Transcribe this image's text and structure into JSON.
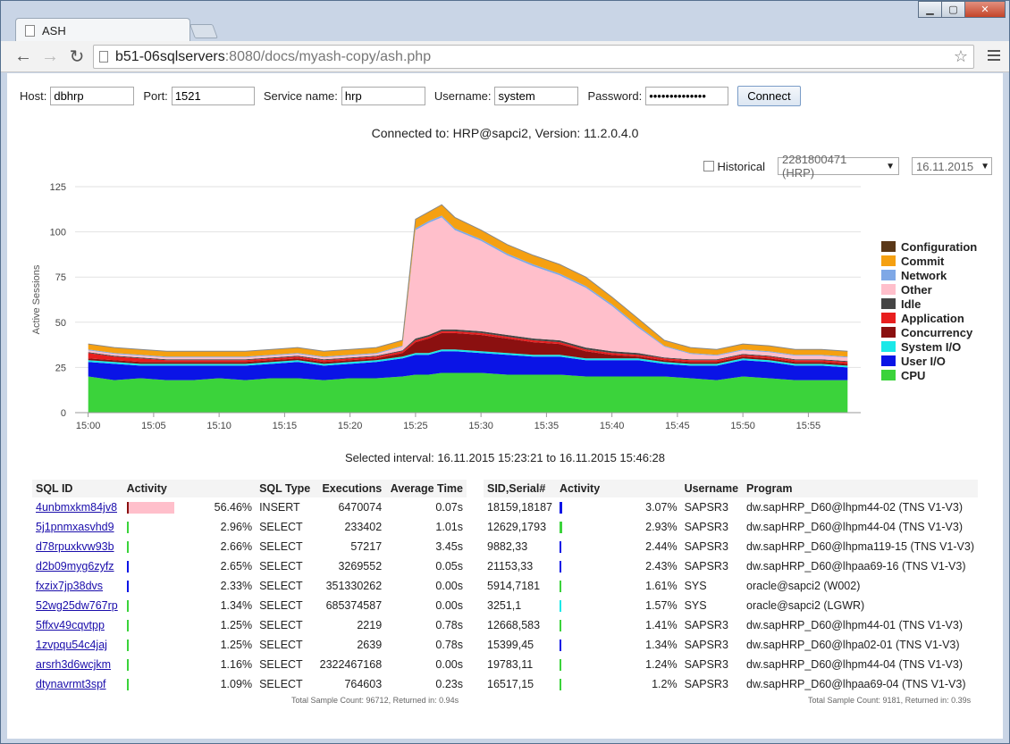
{
  "tab": {
    "title": "ASH"
  },
  "window_controls": {
    "minimize": "▁",
    "maximize": "▢",
    "close": "✕"
  },
  "toolbar": {
    "url_host": "b51-06sqlservers",
    "url_rest": ":8080/docs/myash-copy/ash.php",
    "back_icon": "back-arrow-icon",
    "forward_icon": "forward-arrow-icon",
    "reload_icon": "reload-icon"
  },
  "form": {
    "host_label": "Host:",
    "host_value": "dbhrp",
    "port_label": "Port:",
    "port_value": "1521",
    "service_label": "Service name:",
    "service_value": "hrp",
    "username_label": "Username:",
    "username_value": "system",
    "password_label": "Password:",
    "password_value": "••••••••••••••",
    "connect_label": "Connect"
  },
  "connected_text": "Connected to: HRP@sapci2, Version: 11.2.0.4.0",
  "filters": {
    "historical_label": "Historical",
    "dbid_value": "2281800471 (HRP)",
    "date_value": "16.11.2015"
  },
  "chart_data": {
    "type": "area",
    "stacked": true,
    "ylabel": "Active Sessions",
    "ylim": [
      0,
      125
    ],
    "yticks": [
      "0",
      "25",
      "50",
      "75",
      "100",
      "125"
    ],
    "xticks": [
      "15:00",
      "15:05",
      "15:10",
      "15:15",
      "15:20",
      "15:25",
      "15:30",
      "15:35",
      "15:40",
      "15:45",
      "15:50",
      "15:55"
    ],
    "x": [
      "15:00",
      "15:02",
      "15:04",
      "15:06",
      "15:08",
      "15:10",
      "15:12",
      "15:14",
      "15:16",
      "15:18",
      "15:20",
      "15:22",
      "15:24",
      "15:25",
      "15:26",
      "15:27",
      "15:28",
      "15:30",
      "15:32",
      "15:34",
      "15:36",
      "15:38",
      "15:40",
      "15:42",
      "15:44",
      "15:46",
      "15:48",
      "15:50",
      "15:52",
      "15:54",
      "15:56",
      "15:58"
    ],
    "grid": true,
    "legend_placement": "right",
    "series": [
      {
        "name": "CPU",
        "color": "#3bd33b",
        "values": [
          20,
          18,
          19,
          18,
          18,
          19,
          18,
          19,
          19,
          18,
          19,
          19,
          20,
          21,
          21,
          22,
          22,
          22,
          21,
          21,
          21,
          20,
          20,
          20,
          20,
          19,
          18,
          20,
          19,
          18,
          18,
          18
        ]
      },
      {
        "name": "User I/O",
        "color": "#0a14e6",
        "values": [
          8,
          9,
          7,
          8,
          8,
          7,
          8,
          8,
          9,
          8,
          8,
          9,
          10,
          11,
          11,
          12,
          12,
          11,
          11,
          10,
          10,
          9,
          9,
          9,
          7,
          7,
          8,
          9,
          9,
          8,
          8,
          7
        ]
      },
      {
        "name": "System I/O",
        "color": "#1ae8e8",
        "values": [
          1,
          1,
          1,
          1,
          1,
          1,
          1,
          1,
          1,
          1,
          1,
          1,
          1,
          1,
          1,
          1,
          1,
          1,
          1,
          1,
          1,
          1,
          1,
          1,
          1,
          1,
          1,
          1,
          1,
          1,
          1,
          1
        ]
      },
      {
        "name": "Concurrency",
        "color": "#8b1010",
        "values": [
          1,
          1,
          1,
          1,
          1,
          1,
          1,
          1,
          1,
          1,
          1,
          1,
          2,
          6,
          8,
          9,
          9,
          9,
          8,
          7,
          6,
          4,
          2,
          1,
          1,
          1,
          1,
          1,
          1,
          1,
          1,
          1
        ]
      },
      {
        "name": "Application",
        "color": "#e81e1e",
        "values": [
          3,
          2,
          2,
          1,
          1,
          1,
          1,
          1,
          1,
          1,
          1,
          1,
          1,
          1,
          1,
          1,
          1,
          1,
          1,
          1,
          1,
          1,
          1,
          1,
          1,
          1,
          1,
          1,
          1,
          1,
          1,
          1
        ]
      },
      {
        "name": "Idle",
        "color": "#454545",
        "values": [
          0.5,
          0.5,
          0.5,
          0.5,
          0.5,
          0.5,
          0.5,
          0.5,
          0.5,
          0.5,
          0.5,
          0.5,
          0.5,
          1,
          1,
          1,
          1,
          1,
          1,
          1,
          1,
          1,
          1,
          1,
          0.5,
          0.5,
          0.5,
          0.5,
          0.5,
          0.5,
          0.5,
          0.5
        ]
      },
      {
        "name": "Other",
        "color": "#ffbfcb",
        "values": [
          1,
          1,
          1,
          1,
          1,
          1,
          1,
          1,
          1,
          1,
          1,
          1,
          2,
          60,
          62,
          62,
          55,
          50,
          44,
          40,
          36,
          33,
          25,
          14,
          6,
          3,
          2,
          2,
          2,
          2,
          2,
          2
        ]
      },
      {
        "name": "Network",
        "color": "#7fa8e6",
        "values": [
          0.5,
          0.5,
          0.5,
          0.5,
          0.5,
          0.5,
          0.5,
          0.5,
          0.5,
          0.5,
          0.5,
          0.5,
          0.5,
          1,
          1,
          1,
          1,
          1,
          1,
          1,
          1,
          1,
          1,
          1,
          0.5,
          0.5,
          0.5,
          0.5,
          0.5,
          0.5,
          0.5,
          0.5
        ]
      },
      {
        "name": "Commit",
        "color": "#f5a011",
        "values": [
          3,
          3,
          3,
          3,
          3,
          3,
          3,
          3,
          3,
          3,
          3,
          3,
          3,
          5,
          5,
          6,
          6,
          5,
          5,
          5,
          5,
          5,
          4,
          4,
          3,
          3,
          3,
          3,
          3,
          3,
          3,
          3
        ]
      },
      {
        "name": "Configuration",
        "color": "#5a3818",
        "values": [
          0,
          0,
          0,
          0,
          0,
          0,
          0,
          0,
          0,
          0,
          0,
          0,
          0,
          0,
          0,
          0,
          0,
          0,
          0,
          0,
          0,
          0,
          0,
          0,
          0,
          0,
          0,
          0,
          0,
          0,
          0,
          0
        ]
      }
    ]
  },
  "legend": [
    {
      "name": "Configuration",
      "color": "#5a3818"
    },
    {
      "name": "Commit",
      "color": "#f5a011"
    },
    {
      "name": "Network",
      "color": "#7fa8e6"
    },
    {
      "name": "Other",
      "color": "#ffbfcb"
    },
    {
      "name": "Idle",
      "color": "#454545"
    },
    {
      "name": "Application",
      "color": "#e81e1e"
    },
    {
      "name": "Concurrency",
      "color": "#8b1010"
    },
    {
      "name": "System I/O",
      "color": "#1ae8e8"
    },
    {
      "name": "User I/O",
      "color": "#0a14e6"
    },
    {
      "name": "CPU",
      "color": "#3bd33b"
    }
  ],
  "interval_text": "Selected interval: 16.11.2015 15:23:21 to 16.11.2015 15:46:28",
  "sql_table": {
    "headers": [
      "SQL ID",
      "Activity",
      "",
      "SQL Type",
      "Executions",
      "Average Time"
    ],
    "rows": [
      {
        "id": "4unbmxkm84jv8",
        "pct": "56.46%",
        "frac": 0.5646,
        "type": "INSERT",
        "exec": "6470074",
        "avg": "0.07s",
        "bar": "#ffbfcb",
        "lead": "#8b1010"
      },
      {
        "id": "5j1pnmxasvhd9",
        "pct": "2.96%",
        "frac": 0.0296,
        "type": "SELECT",
        "exec": "233402",
        "avg": "1.01s",
        "bar": "#3bd33b",
        "lead": "#3bd33b"
      },
      {
        "id": "d78rpuxkvw93b",
        "pct": "2.66%",
        "frac": 0.0266,
        "type": "SELECT",
        "exec": "57217",
        "avg": "3.45s",
        "bar": "#3bd33b",
        "lead": "#3bd33b"
      },
      {
        "id": "d2b09myg6zyfz",
        "pct": "2.65%",
        "frac": 0.0265,
        "type": "SELECT",
        "exec": "3269552",
        "avg": "0.05s",
        "bar": "#0a14e6",
        "lead": "#0a14e6"
      },
      {
        "id": "fxzix7jp38dvs",
        "pct": "2.33%",
        "frac": 0.0233,
        "type": "SELECT",
        "exec": "351330262",
        "avg": "0.00s",
        "bar": "#0a14e6",
        "lead": "#0a14e6"
      },
      {
        "id": "52wg25dw767rp",
        "pct": "1.34%",
        "frac": 0.0134,
        "type": "SELECT",
        "exec": "685374587",
        "avg": "0.00s",
        "bar": "#3bd33b",
        "lead": "#3bd33b"
      },
      {
        "id": "5ffxv49cqvtpp",
        "pct": "1.25%",
        "frac": 0.0125,
        "type": "SELECT",
        "exec": "2219",
        "avg": "0.78s",
        "bar": "#3bd33b",
        "lead": "#3bd33b"
      },
      {
        "id": "1zvpqu54c4jaj",
        "pct": "1.25%",
        "frac": 0.0125,
        "type": "SELECT",
        "exec": "2639",
        "avg": "0.78s",
        "bar": "#3bd33b",
        "lead": "#3bd33b"
      },
      {
        "id": "arsrh3d6wcjkm",
        "pct": "1.16%",
        "frac": 0.0116,
        "type": "SELECT",
        "exec": "2322467168",
        "avg": "0.00s",
        "bar": "#3bd33b",
        "lead": "#3bd33b"
      },
      {
        "id": "dtynavrmt3spf",
        "pct": "1.09%",
        "frac": 0.0109,
        "type": "SELECT",
        "exec": "764603",
        "avg": "0.23s",
        "bar": "#3bd33b",
        "lead": "#3bd33b"
      }
    ],
    "footnote": "Total Sample Count: 96712, Returned in: 0.94s"
  },
  "session_table": {
    "headers": [
      "SID,Serial#",
      "Activity",
      "",
      "Username",
      "Program"
    ],
    "rows": [
      {
        "sid": "18159,18187",
        "pct": "3.07%",
        "frac": 0.0307,
        "user": "SAPSR3",
        "program": "dw.sapHRP_D60@lhpm44-02 (TNS V1-V3)",
        "bar": "#0a14e6"
      },
      {
        "sid": "12629,1793",
        "pct": "2.93%",
        "frac": 0.0293,
        "user": "SAPSR3",
        "program": "dw.sapHRP_D60@lhpm44-04 (TNS V1-V3)",
        "bar": "#3bd33b"
      },
      {
        "sid": "9882,33",
        "pct": "2.44%",
        "frac": 0.0244,
        "user": "SAPSR3",
        "program": "dw.sapHRP_D60@lhpma119-15 (TNS V1-V3)",
        "bar": "#0a14e6"
      },
      {
        "sid": "21153,33",
        "pct": "2.43%",
        "frac": 0.0243,
        "user": "SAPSR3",
        "program": "dw.sapHRP_D60@lhpaa69-16 (TNS V1-V3)",
        "bar": "#0a14e6"
      },
      {
        "sid": "5914,7181",
        "pct": "1.61%",
        "frac": 0.0161,
        "user": "SYS",
        "program": "oracle@sapci2 (W002)",
        "bar": "#3bd33b"
      },
      {
        "sid": "3251,1",
        "pct": "1.57%",
        "frac": 0.0157,
        "user": "SYS",
        "program": "oracle@sapci2 (LGWR)",
        "bar": "#1ae8e8"
      },
      {
        "sid": "12668,583",
        "pct": "1.41%",
        "frac": 0.0141,
        "user": "SAPSR3",
        "program": "dw.sapHRP_D60@lhpm44-01 (TNS V1-V3)",
        "bar": "#3bd33b"
      },
      {
        "sid": "15399,45",
        "pct": "1.34%",
        "frac": 0.0134,
        "user": "SAPSR3",
        "program": "dw.sapHRP_D60@lhpa02-01 (TNS V1-V3)",
        "bar": "#0a14e6"
      },
      {
        "sid": "19783,11",
        "pct": "1.24%",
        "frac": 0.0124,
        "user": "SAPSR3",
        "program": "dw.sapHRP_D60@lhpm44-04 (TNS V1-V3)",
        "bar": "#3bd33b"
      },
      {
        "sid": "16517,15",
        "pct": "1.2%",
        "frac": 0.012,
        "user": "SAPSR3",
        "program": "dw.sapHRP_D60@lhpaa69-04 (TNS V1-V3)",
        "bar": "#3bd33b"
      }
    ],
    "footnote": "Total Sample Count: 9181, Returned in: 0.39s"
  }
}
